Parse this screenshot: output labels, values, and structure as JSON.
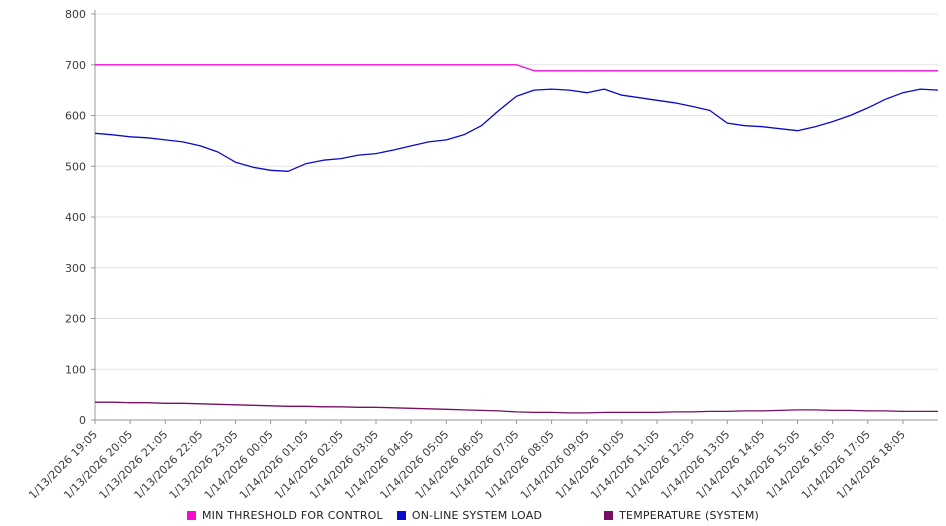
{
  "chart_data": {
    "type": "line",
    "title": "",
    "xlabel": "",
    "ylabel": "",
    "ylim": [
      0,
      800
    ],
    "y_ticks": [
      0,
      100,
      200,
      300,
      400,
      500,
      600,
      700,
      800
    ],
    "grid": true,
    "legend_position": "bottom",
    "x_labels": [
      "1/13/2026 19:05",
      "1/13/2026 20:05",
      "1/13/2026 21:05",
      "1/13/2026 22:05",
      "1/13/2026 23:05",
      "1/14/2026 00:05",
      "1/14/2026 01:05",
      "1/14/2026 02:05",
      "1/14/2026 03:05",
      "1/14/2026 04:05",
      "1/14/2026 05:05",
      "1/14/2026 06:05",
      "1/14/2026 07:05",
      "1/14/2026 08:05",
      "1/14/2026 09:05",
      "1/14/2026 10:05",
      "1/14/2026 11:05",
      "1/14/2026 12:05",
      "1/14/2026 13:05",
      "1/14/2026 14:05",
      "1/14/2026 15:05",
      "1/14/2026 16:05",
      "1/14/2026 17:05",
      "1/14/2026 18:05"
    ],
    "series": [
      {
        "name": "MIN THRESHOLD FOR CONTROL",
        "color": "#f20dd0",
        "values": [
          700,
          700,
          700,
          700,
          700,
          700,
          700,
          700,
          700,
          700,
          700,
          700,
          700,
          700,
          700,
          700,
          700,
          700,
          700,
          700,
          700,
          700,
          700,
          700,
          700,
          688,
          688,
          688,
          688,
          688,
          688,
          688,
          688,
          688,
          688,
          688,
          688,
          688,
          688,
          688,
          688,
          688,
          688,
          688,
          688,
          688,
          688,
          688,
          688
        ]
      },
      {
        "name": "ON-LINE SYSTEM LOAD",
        "color": "#0a0ac8",
        "values": [
          565,
          562,
          558,
          556,
          552,
          548,
          540,
          528,
          508,
          498,
          492,
          490,
          505,
          512,
          515,
          522,
          525,
          532,
          540,
          548,
          552,
          562,
          580,
          610,
          638,
          650,
          652,
          650,
          645,
          652,
          640,
          635,
          630,
          625,
          618,
          610,
          585,
          580,
          578,
          574,
          570,
          578,
          588,
          600,
          615,
          632,
          645,
          652,
          650
        ]
      },
      {
        "name": "TEMPERATURE (SYSTEM)",
        "color": "#780f64",
        "values": [
          35,
          35,
          34,
          34,
          33,
          33,
          32,
          31,
          30,
          29,
          28,
          27,
          27,
          26,
          26,
          25,
          25,
          24,
          23,
          22,
          21,
          20,
          19,
          18,
          16,
          15,
          15,
          14,
          14,
          15,
          15,
          15,
          15,
          16,
          16,
          17,
          17,
          18,
          18,
          19,
          20,
          20,
          19,
          19,
          18,
          18,
          17,
          17,
          17
        ]
      }
    ]
  }
}
